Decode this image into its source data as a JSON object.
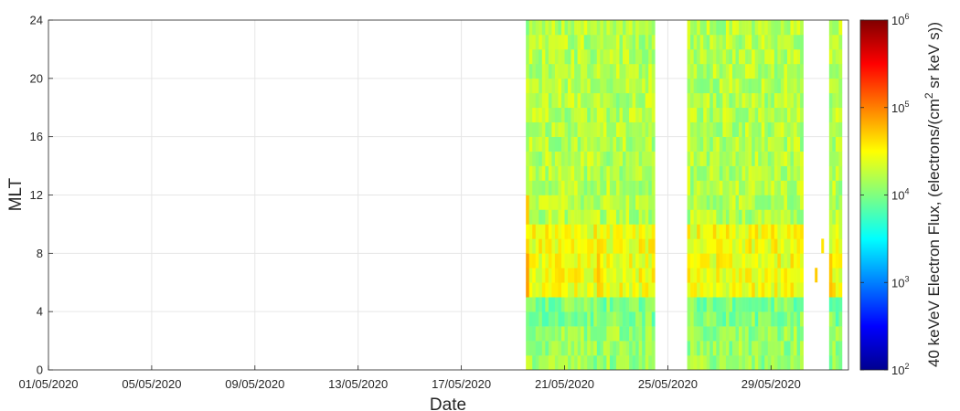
{
  "chart_data": {
    "type": "heatmap",
    "xlabel": "Date",
    "ylabel": "MLT",
    "x_range": [
      "01/05/2020",
      "01/06/2020"
    ],
    "x_ticks": [
      "01/05/2020",
      "05/05/2020",
      "09/05/2020",
      "13/05/2020",
      "17/05/2020",
      "21/05/2020",
      "25/05/2020",
      "29/05/2020"
    ],
    "ylim": [
      0,
      24
    ],
    "y_ticks": [
      "0",
      "4",
      "8",
      "12",
      "16",
      "20",
      "24"
    ],
    "mlt_bin_hours": 1,
    "grid": true,
    "colorbar": {
      "label": "40 keVeV Electron Flux, (electrons/(cm2 sr keV s))",
      "label_parts": [
        "40 keVeV Electron Flux, (electrons/(cm",
        "2",
        " sr keV s))"
      ],
      "scale": "log",
      "min": 100,
      "max": 1000000,
      "colormap": "jet",
      "tick_values": [
        100,
        1000,
        10000,
        100000,
        1000000
      ],
      "tick_exponents": [
        "2",
        "3",
        "4",
        "5",
        "6"
      ],
      "tick_base": "10"
    },
    "data_intervals": [
      {
        "start": "19/05/2020 12:00",
        "end": "24/05/2020 12:00"
      },
      {
        "start": "25/05/2020 18:00",
        "end": "30/05/2020 06:00"
      },
      {
        "start": "31/05/2020 06:00",
        "end": "31/05/2020 18:00"
      }
    ],
    "typical_log10_flux": {
      "mlt_0_3": 4.1,
      "mlt_3_5": 4.0,
      "mlt_5_10": 4.45,
      "mlt_10_24": 4.2
    },
    "enhancements": [
      {
        "date": "19/05/2020 12:00",
        "mlt_from": 5,
        "mlt_to": 8,
        "log10_flux": 4.9
      },
      {
        "date": "19/05/2020 12:00",
        "mlt_from": 10,
        "mlt_to": 12,
        "log10_flux": 4.75
      },
      {
        "date": "20/05/2020 18:00",
        "mlt_from": 5,
        "mlt_to": 8,
        "log10_flux": 4.7
      },
      {
        "date": "22/05/2020 06:00",
        "mlt_from": 5,
        "mlt_to": 9,
        "log10_flux": 4.75
      },
      {
        "date": "31/05/2020 06:00",
        "mlt_from": 5,
        "mlt_to": 8,
        "log10_flux": 4.8
      }
    ],
    "isolated_points": [
      {
        "date": "30/05/2020 18:00",
        "mlt": 6.5,
        "log10_flux": 4.7
      },
      {
        "date": "31/05/2020 00:00",
        "mlt": 8.5,
        "log10_flux": 4.6
      }
    ]
  }
}
